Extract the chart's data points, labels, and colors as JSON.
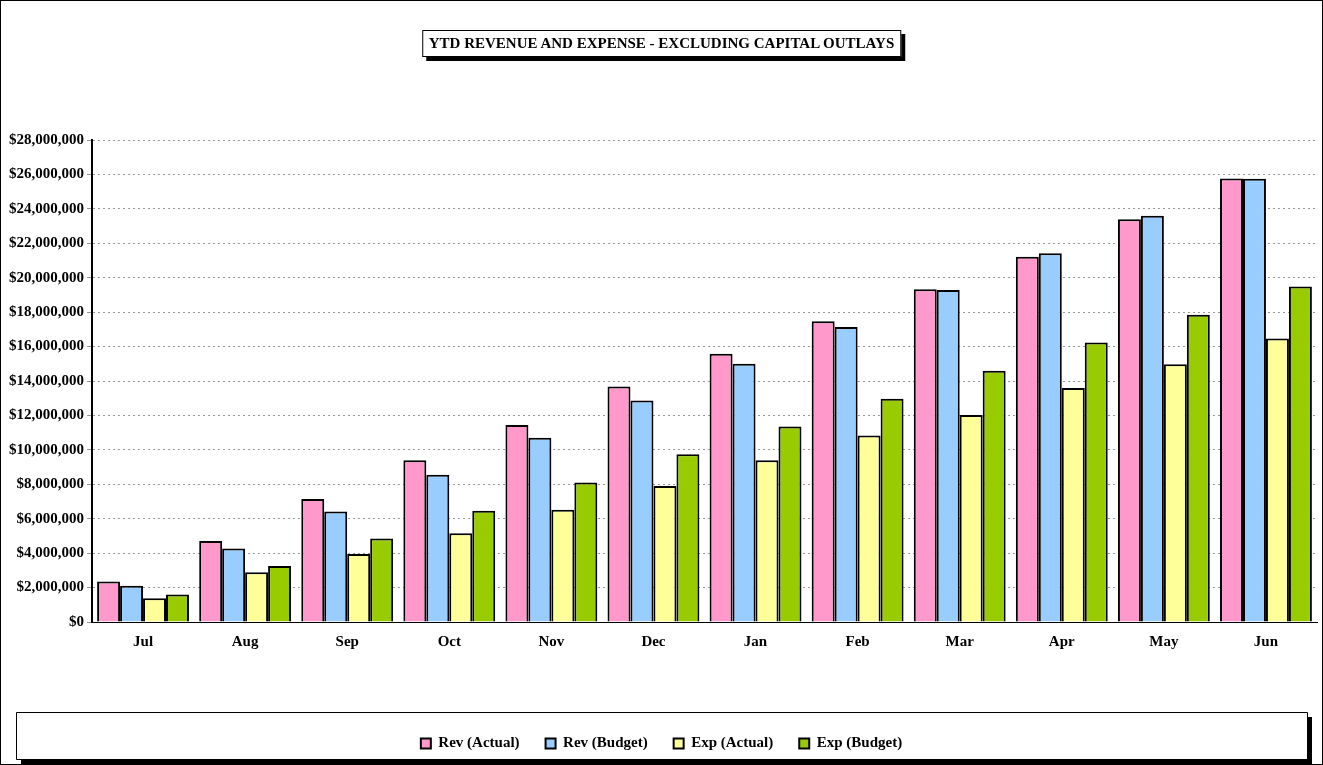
{
  "chart_data": {
    "type": "bar",
    "title": "YTD REVENUE AND EXPENSE - EXCLUDING CAPITAL OUTLAYS",
    "categories": [
      "Jul",
      "Aug",
      "Sep",
      "Oct",
      "Nov",
      "Dec",
      "Jan",
      "Feb",
      "Mar",
      "Apr",
      "May",
      "Jun"
    ],
    "series": [
      {
        "name": "Rev (Actual)",
        "color": "#ff99cc",
        "values": [
          2350000,
          4710000,
          7140000,
          9400000,
          11450000,
          13680000,
          15580000,
          17470000,
          19330000,
          21220000,
          23400000,
          25770000
        ]
      },
      {
        "name": "Rev (Budget)",
        "color": "#99ccff",
        "values": [
          2110000,
          4270000,
          6420000,
          8560000,
          10710000,
          12860000,
          15000000,
          17130000,
          19290000,
          21420000,
          23600000,
          25750000
        ]
      },
      {
        "name": "Exp (Actual)",
        "color": "#ffff99",
        "values": [
          1380000,
          2890000,
          3950000,
          5150000,
          6520000,
          7900000,
          9400000,
          10830000,
          12030000,
          13600000,
          14980000,
          16470000
        ]
      },
      {
        "name": "Exp (Budget)",
        "color": "#99cc00",
        "values": [
          1600000,
          3250000,
          4850000,
          6460000,
          8100000,
          9740000,
          11350000,
          12970000,
          14600000,
          16240000,
          17850000,
          19490000
        ]
      }
    ],
    "ylim": [
      0,
      28000000
    ],
    "yticks": [
      {
        "value": 0,
        "label": "$0"
      },
      {
        "value": 2000000,
        "label": "$2,000,000"
      },
      {
        "value": 4000000,
        "label": "$4,000,000"
      },
      {
        "value": 6000000,
        "label": "$6,000,000"
      },
      {
        "value": 8000000,
        "label": "$8,000,000"
      },
      {
        "value": 10000000,
        "label": "$10,000,000"
      },
      {
        "value": 12000000,
        "label": "$12,000,000"
      },
      {
        "value": 14000000,
        "label": "$14,000,000"
      },
      {
        "value": 16000000,
        "label": "$16,000,000"
      },
      {
        "value": 18000000,
        "label": "$18,000,000"
      },
      {
        "value": 20000000,
        "label": "$20,000,000"
      },
      {
        "value": 22000000,
        "label": "$22,000,000"
      },
      {
        "value": 24000000,
        "label": "$24,000,000"
      },
      {
        "value": 26000000,
        "label": "$26,000,000"
      },
      {
        "value": 28000000,
        "label": "$28,000,000"
      }
    ],
    "grid": "y",
    "legend": "bottom"
  }
}
